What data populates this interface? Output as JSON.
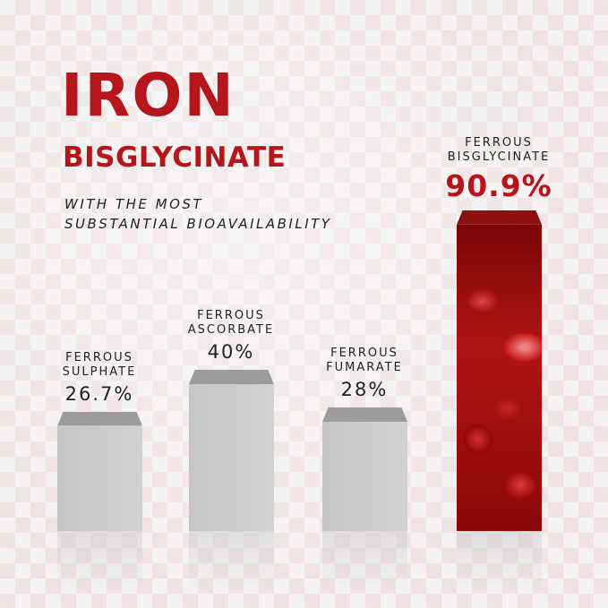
{
  "header": {
    "title": "IRON",
    "subtitle": "BISGLYCINATE",
    "tagline_1": "WITH THE MOST",
    "tagline_2": "SUBSTANTIAL BIOAVAILABILITY"
  },
  "chart_data": {
    "type": "bar",
    "categories": [
      "FERROUS SULPHATE",
      "FERROUS ASCORBATE",
      "FERROUS FUMARATE",
      "FERROUS BISGLYCINATE"
    ],
    "name_lines": [
      [
        "FERROUS",
        "SULPHATE"
      ],
      [
        "FERROUS",
        "ASCORBATE"
      ],
      [
        "FERROUS",
        "FUMARATE"
      ],
      [
        "FERROUS",
        "BISGLYCINATE"
      ]
    ],
    "values": [
      26.7,
      40,
      28,
      90.9
    ],
    "data_labels": [
      "26.7%",
      "40%",
      "28%",
      "90.9%"
    ],
    "highlight_index": 3,
    "colors": {
      "bar": "#c9c9c9",
      "cap": "#9c9c9c",
      "highlight": "#b5161b"
    },
    "grid": false
  }
}
